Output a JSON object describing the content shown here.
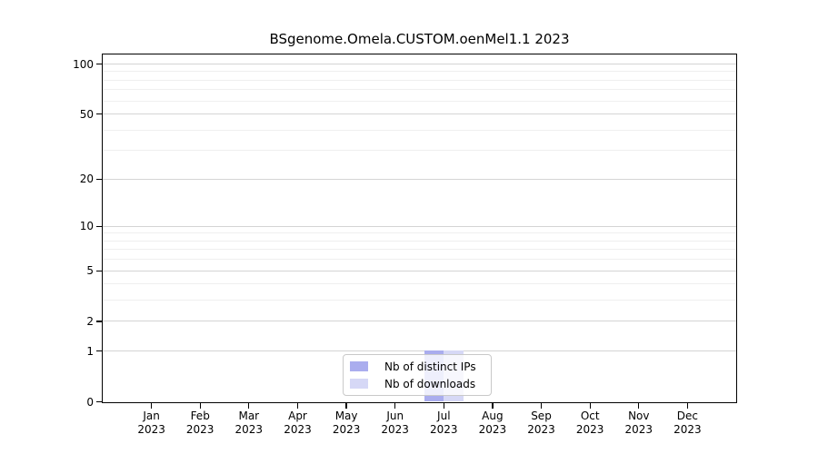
{
  "chart_data": {
    "type": "bar",
    "title": "BSgenome.Omela.CUSTOM.oenMel1.1 2023",
    "categories": [
      "Jan 2023",
      "Feb 2023",
      "Mar 2023",
      "Apr 2023",
      "May 2023",
      "Jun 2023",
      "Jul 2023",
      "Aug 2023",
      "Sep 2023",
      "Oct 2023",
      "Nov 2023",
      "Dec 2023"
    ],
    "series": [
      {
        "name": "Nb of distinct IPs",
        "color": "#aaadee",
        "values": [
          0,
          0,
          0,
          0,
          0,
          0,
          1,
          0,
          0,
          0,
          0,
          0
        ]
      },
      {
        "name": "Nb of downloads",
        "color": "#d6d8f6",
        "values": [
          0,
          0,
          0,
          0,
          0,
          0,
          1,
          0,
          0,
          0,
          0,
          0
        ]
      }
    ],
    "xlabel": "",
    "ylabel": "",
    "ylim": [
      0,
      100
    ],
    "y_scale": "log1p",
    "y_major_ticks": [
      0,
      1,
      2,
      5,
      10,
      20,
      50,
      100
    ],
    "y_minor_gridlines": [
      3,
      4,
      6,
      7,
      8,
      9,
      30,
      40,
      60,
      70,
      80,
      90
    ],
    "grid": true,
    "legend_position": "center-bottom"
  },
  "colors": {
    "background": "#ffffff",
    "axis": "#000000",
    "major_grid": "#d4d4d4",
    "minor_grid": "#efefef",
    "legend_border": "#c9c9c9",
    "bar_distinct_ips": "#aaadee",
    "bar_downloads": "#d6d8f6"
  }
}
